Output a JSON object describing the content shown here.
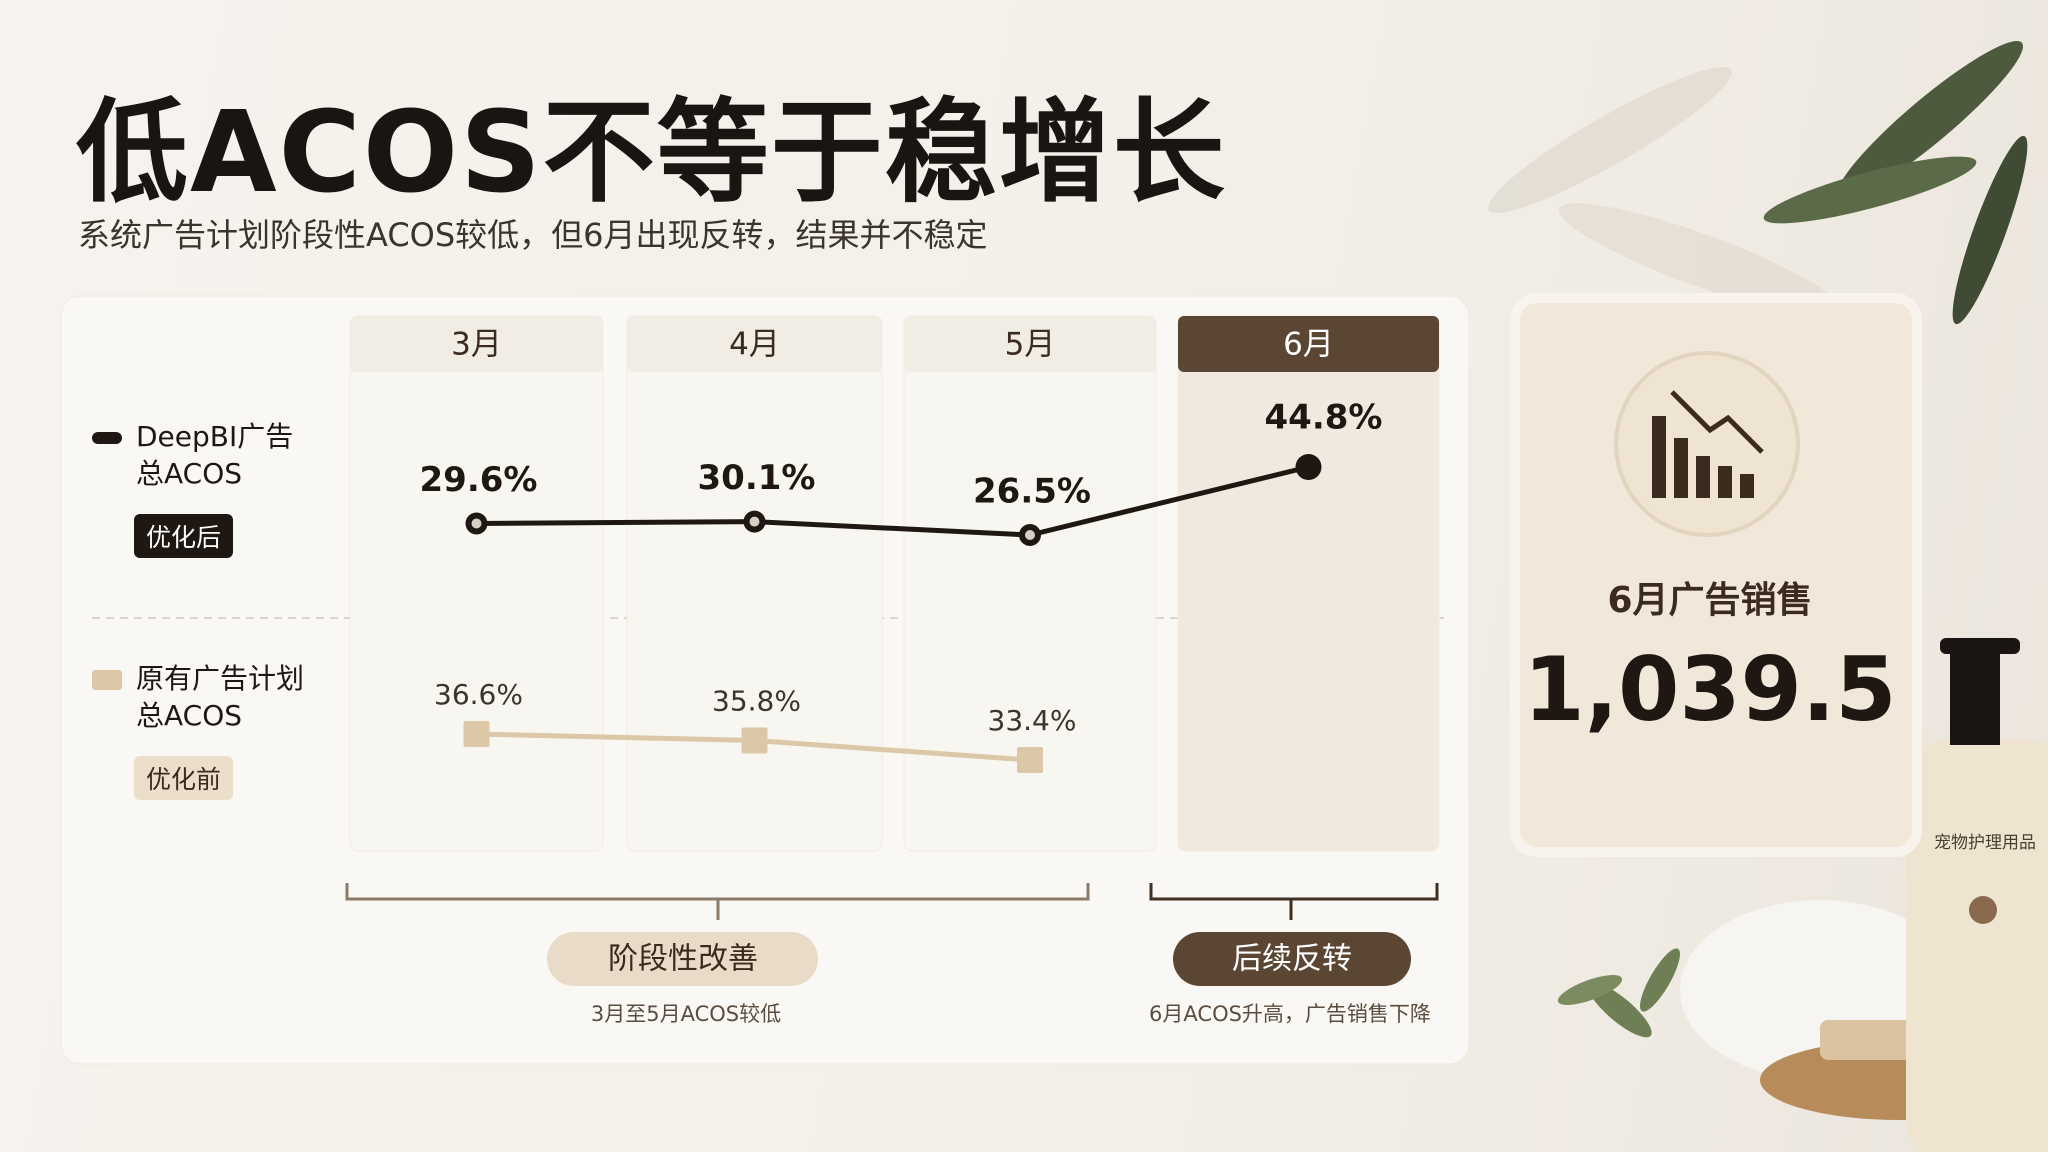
{
  "title": "低ACOS不等于稳增长",
  "subtitle": "系统广告计划阶段性ACOS较低，但6月出现反转，结果并不稳定",
  "chart_data": {
    "type": "line",
    "categories": [
      "3月",
      "4月",
      "5月",
      "6月"
    ],
    "series": [
      {
        "name": "DeepBI广告总ACOS",
        "tag": "优化后",
        "color": "#1e1712",
        "values": [
          29.6,
          30.1,
          26.5,
          44.8
        ],
        "value_labels": [
          "29.6%",
          "30.1%",
          "26.5%",
          "44.8%"
        ]
      },
      {
        "name": "原有广告计划总ACOS",
        "tag": "优化前",
        "color": "#dcc7a6",
        "values": [
          36.6,
          35.8,
          33.4,
          null
        ],
        "value_labels": [
          "36.6%",
          "35.8%",
          "33.4%",
          null
        ]
      }
    ],
    "groups": [
      {
        "label": "阶段性改善",
        "note": "3月至5月ACOS较低"
      },
      {
        "label": "后续反转",
        "note": "6月ACOS升高，广告销售下降"
      }
    ]
  },
  "kpi": {
    "label": "6月广告销售",
    "value": "1,039.5"
  },
  "product_label": "宠物护理用品"
}
